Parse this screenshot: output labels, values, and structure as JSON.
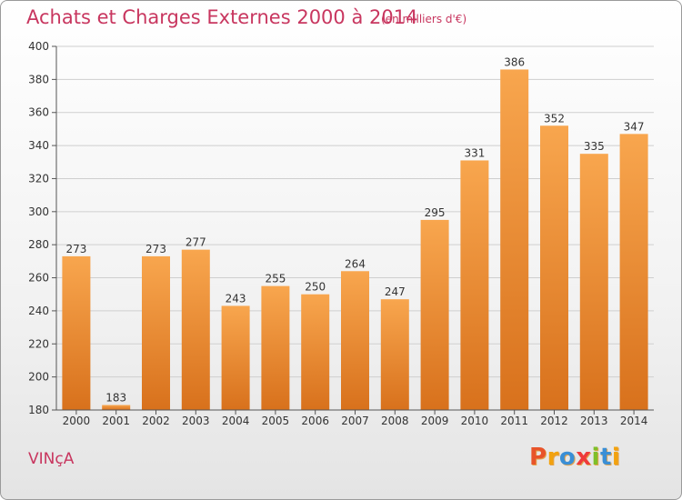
{
  "title": "Achats et Charges Externes 2000 à 2014",
  "subtitle": "(en milliers d'€)",
  "commune": "VINçA",
  "logo_text": "Proxiti",
  "colors": {
    "title": "#c8365f",
    "bar_top": "#f8a64e",
    "bar_bottom": "#d8711c",
    "grid": "#cfcfcf"
  },
  "chart_data": {
    "type": "bar",
    "title": "Achats et Charges Externes 2000 à 2014",
    "subtitle": "(en milliers d'€)",
    "categories": [
      "2000",
      "2001",
      "2002",
      "2003",
      "2004",
      "2005",
      "2006",
      "2007",
      "2008",
      "2009",
      "2010",
      "2011",
      "2012",
      "2013",
      "2014"
    ],
    "values": [
      273,
      183,
      273,
      277,
      243,
      255,
      250,
      264,
      247,
      295,
      331,
      386,
      352,
      335,
      347
    ],
    "ylim": [
      180,
      400
    ],
    "yticks": [
      180,
      200,
      220,
      240,
      260,
      280,
      300,
      320,
      340,
      360,
      380,
      400
    ],
    "grid": true,
    "xlabel": "",
    "ylabel": ""
  }
}
